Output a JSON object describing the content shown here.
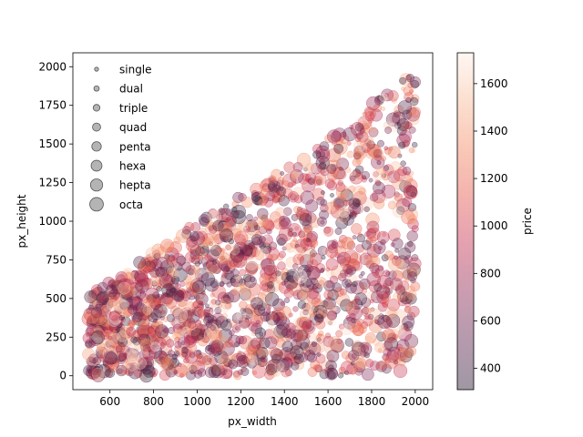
{
  "chart_data": {
    "type": "scatter",
    "xlabel": "px_width",
    "ylabel": "px_height",
    "xlim": [
      430,
      2080
    ],
    "ylim": [
      -90,
      2090
    ],
    "x_ticks": [
      600,
      800,
      1000,
      1200,
      1400,
      1600,
      1800,
      2000
    ],
    "y_ticks": [
      0,
      250,
      500,
      750,
      1000,
      1250,
      1500,
      1750,
      2000
    ],
    "grid": false,
    "legend": {
      "placement": "upper-left",
      "entries": [
        {
          "label": "single",
          "size_class": 1
        },
        {
          "label": "dual",
          "size_class": 2
        },
        {
          "label": "triple",
          "size_class": 3
        },
        {
          "label": "quad",
          "size_class": 4
        },
        {
          "label": "penta",
          "size_class": 5
        },
        {
          "label": "hexa",
          "size_class": 6
        },
        {
          "label": "hepta",
          "size_class": 7
        },
        {
          "label": "octa",
          "size_class": 8
        }
      ]
    },
    "colorbar": {
      "label": "price",
      "range": [
        310,
        1730
      ],
      "ticks": [
        400,
        600,
        800,
        1000,
        1200,
        1400,
        1600
      ],
      "colormap": [
        "#2b1a33",
        "#5a1f4a",
        "#8a2451",
        "#c22c4f",
        "#e4544a",
        "#f2855d",
        "#f8b896",
        "#fdeee3"
      ]
    },
    "marker_alpha": 0.35,
    "point_count": 2000,
    "distribution": {
      "x_range": [
        500,
        2000
      ],
      "y_range": [
        0,
        1960
      ],
      "upper_envelope": [
        [
          500,
          520
        ],
        [
          700,
          700
        ],
        [
          1000,
          1000
        ],
        [
          1300,
          1250
        ],
        [
          1500,
          1420
        ],
        [
          1700,
          1650
        ],
        [
          1900,
          1900
        ],
        [
          2000,
          1960
        ]
      ],
      "size_classes": 8,
      "price_range": [
        310,
        1730
      ]
    }
  }
}
